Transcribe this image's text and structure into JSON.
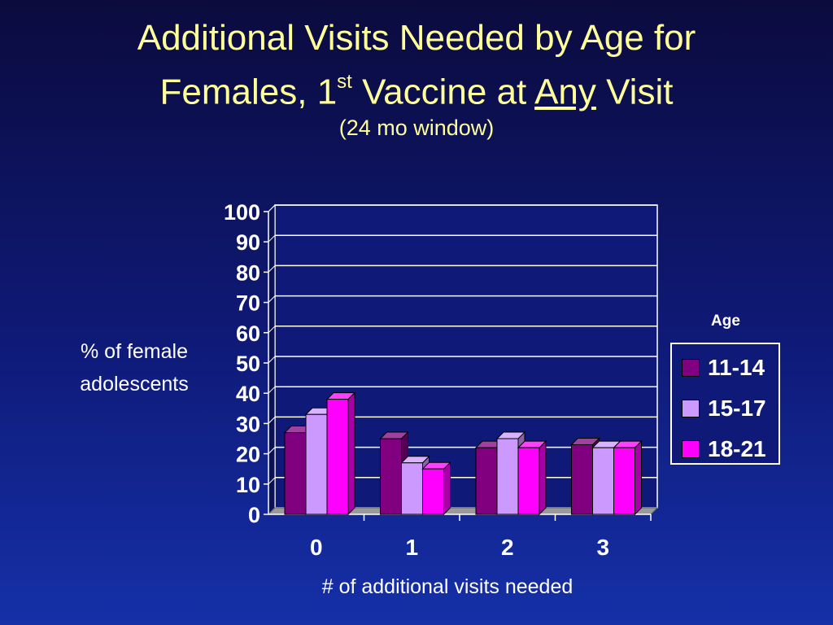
{
  "slide": {
    "title_line1": "Additional Visits Needed by Age for",
    "title_line2_pre": "Females, 1",
    "title_line2_sup": "st",
    "title_line2_mid": " Vaccine at ",
    "title_line2_underlined": "Any",
    "title_line2_post": " Visit",
    "subtitle": "(24 mo window)"
  },
  "chart_data": {
    "type": "bar",
    "categories": [
      "0",
      "1",
      "2",
      "3"
    ],
    "series": [
      {
        "name": "11-14",
        "values": [
          27,
          25,
          22,
          23
        ],
        "color": "#800080"
      },
      {
        "name": "15-17",
        "values": [
          33,
          17,
          25,
          22
        ],
        "color": "#cc99ff"
      },
      {
        "name": "18-21",
        "values": [
          38,
          15,
          22,
          22
        ],
        "color": "#ff00ff"
      }
    ],
    "ylabel_line1": "% of female",
    "ylabel_line2": "adolescents",
    "xlabel": "# of additional visits needed",
    "yticks": [
      "0",
      "10",
      "20",
      "30",
      "40",
      "50",
      "60",
      "70",
      "80",
      "90",
      "100"
    ],
    "ylim": [
      0,
      100
    ],
    "legend_title": "Age",
    "legend_placement": "right",
    "grid": true,
    "wall_color": "#0f1a78",
    "grid_color": "#ffffff"
  }
}
